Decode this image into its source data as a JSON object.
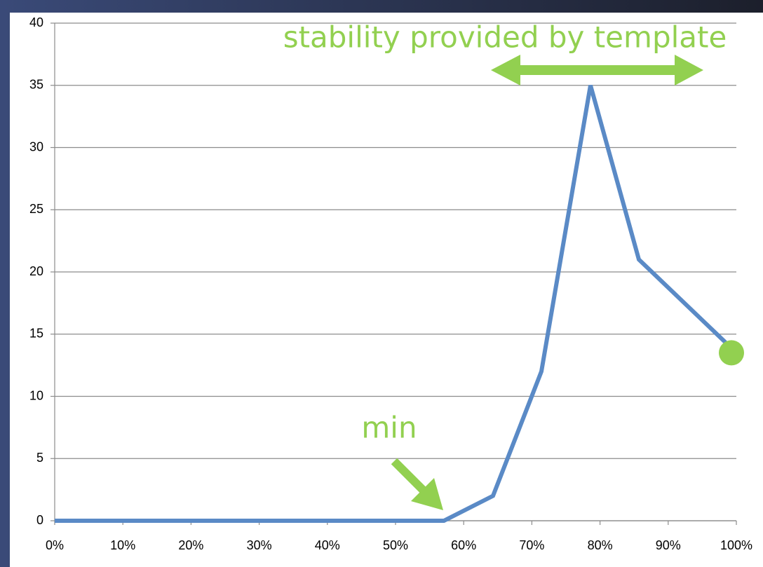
{
  "chart_data": {
    "type": "line",
    "x": [
      0,
      57.1,
      64.3,
      71.4,
      78.6,
      85.7,
      100
    ],
    "series": [
      {
        "color": "#5a8ac6",
        "values": [
          0,
          0,
          2,
          12,
          35,
          21,
          13.5
        ]
      }
    ],
    "xlim": [
      0,
      100
    ],
    "xticks": [
      {
        "value": 0,
        "label": "0%"
      },
      {
        "value": 10,
        "label": "10%"
      },
      {
        "value": 20,
        "label": "20%"
      },
      {
        "value": 30,
        "label": "30%"
      },
      {
        "value": 40,
        "label": "40%"
      },
      {
        "value": 50,
        "label": "50%"
      },
      {
        "value": 60,
        "label": "60%"
      },
      {
        "value": 70,
        "label": "70%"
      },
      {
        "value": 80,
        "label": "80%"
      },
      {
        "value": 90,
        "label": "90%"
      },
      {
        "value": 100,
        "label": "100%"
      }
    ],
    "ylim": [
      0,
      40
    ],
    "yticks": [
      0,
      5,
      10,
      15,
      20,
      25,
      30,
      35,
      40
    ],
    "grid": true,
    "annotations": [
      {
        "text": "stability provided by template"
      },
      {
        "text": "min"
      }
    ],
    "highlight_color": "#92d050"
  }
}
